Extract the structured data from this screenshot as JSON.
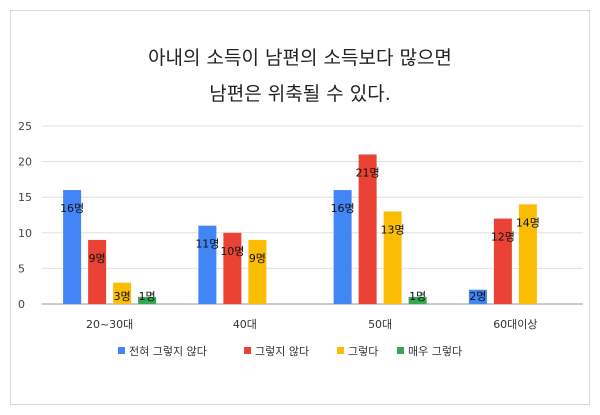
{
  "chart_data": {
    "type": "bar",
    "title_lines": [
      "아내의 소득이 남편의 소득보다 많으면",
      "남편은 위축될 수 있다."
    ],
    "categories": [
      "20~30대",
      "40대",
      "50대",
      "60대이상"
    ],
    "series": [
      {
        "name": "전혀 그렇지 않다",
        "color": "#4285f4",
        "values": [
          16,
          11,
          16,
          2
        ],
        "labels": [
          "16명",
          "11명",
          "16명",
          "2명"
        ]
      },
      {
        "name": "그렇지 않다",
        "color": "#ea4335",
        "values": [
          9,
          10,
          21,
          12
        ],
        "labels": [
          "9명",
          "10명",
          "21명",
          "12명"
        ]
      },
      {
        "name": "그렇다",
        "color": "#fbbc04",
        "values": [
          3,
          9,
          13,
          14
        ],
        "labels": [
          "3명",
          "9명",
          "13명",
          "14명"
        ]
      },
      {
        "name": "매우 그렇다",
        "color": "#34a853",
        "values": [
          1,
          null,
          1,
          null
        ],
        "labels": [
          "1명",
          "",
          "1명",
          ""
        ]
      }
    ],
    "yticks": [
      0,
      5,
      10,
      15,
      20,
      25
    ],
    "ylim": [
      0,
      25
    ],
    "grid": true,
    "legend": "bottom"
  }
}
